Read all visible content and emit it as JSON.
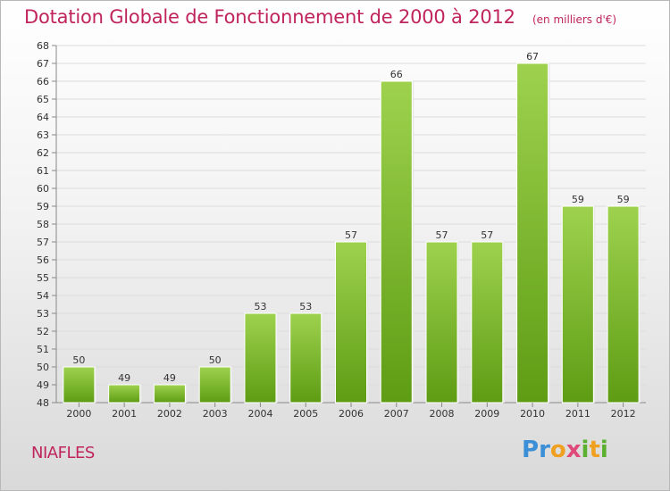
{
  "header": {
    "title": "Dotation Globale de Fonctionnement de 2000 à 2012",
    "unit": "(en milliers d'€)"
  },
  "footer": {
    "commune": "NIAFLES",
    "logo": "Proxiti"
  },
  "colors": {
    "title": "#c0245c",
    "bar_light": "#9ed24e",
    "bar_dark": "#5e9c14",
    "grid": "#dcdcdc"
  },
  "chart_data": {
    "type": "bar",
    "title": "Dotation Globale de Fonctionnement de 2000 à 2012",
    "subtitle": "(en milliers d'€)",
    "xlabel": "",
    "ylabel": "",
    "categories": [
      "2000",
      "2001",
      "2002",
      "2003",
      "2004",
      "2005",
      "2006",
      "2007",
      "2008",
      "2009",
      "2010",
      "2011",
      "2012"
    ],
    "values": [
      50,
      49,
      49,
      50,
      53,
      53,
      57,
      66,
      57,
      57,
      67,
      59,
      59
    ],
    "ylim": [
      48,
      68
    ],
    "ytick_step": 1,
    "grid": true,
    "legend": "none"
  }
}
